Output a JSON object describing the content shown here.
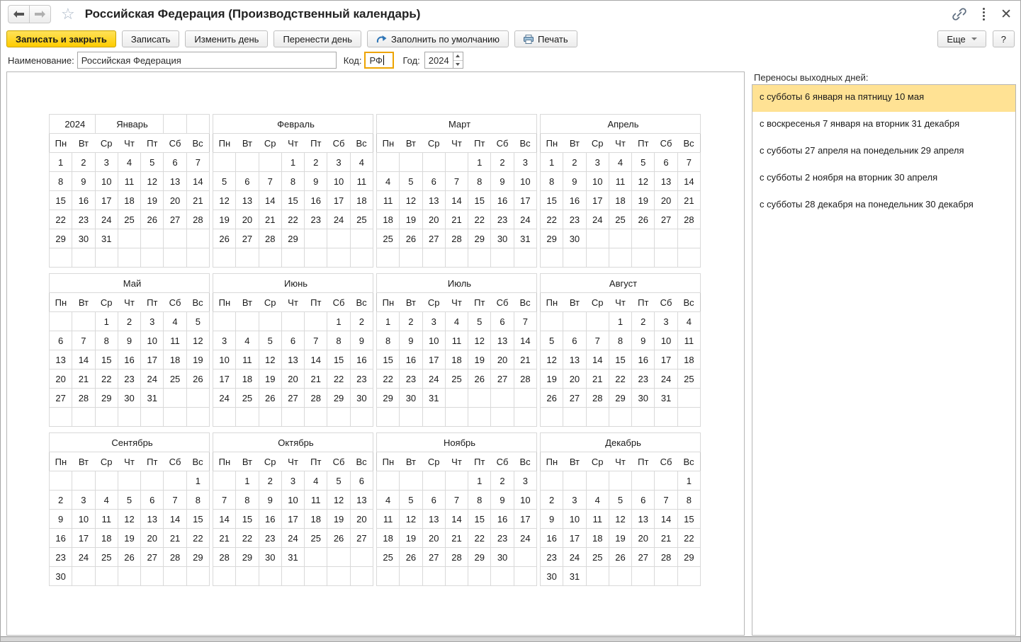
{
  "window": {
    "title": "Российская Федерация (Производственный календарь)"
  },
  "toolbar": {
    "save_close_label": "Записать и закрыть",
    "save_label": "Записать",
    "change_day_label": "Изменить день",
    "move_day_label": "Перенести день",
    "fill_default_label": "Заполнить по умолчанию",
    "print_label": "Печать",
    "more_label": "Еще",
    "help_label": "?"
  },
  "form": {
    "name_label": "Наименование:",
    "name_value": "Российская Федерация",
    "code_label": "Код:",
    "code_value": "РФ",
    "year_label": "Год:",
    "year_value": "2024"
  },
  "colors": {
    "accent_yellow_button": "#ffd633",
    "selected_row_yellow": "#ffe294",
    "weekend_header": "#e0571b",
    "day_default": "#1a1a1a",
    "day_saturday_or_moved_dayoff": "#8b1a1a",
    "day_sunday": "#f50f0f",
    "day_holiday": "#ee82ee",
    "day_preholiday_short": "#1f2090"
  },
  "calendar": {
    "year": "2024",
    "weekdays": [
      "Пн",
      "Вт",
      "Ср",
      "Чт",
      "Пт",
      "Сб",
      "Вс"
    ],
    "day_type_suffixes": {
      "m": "day_saturday_or_moved_dayoff",
      "r": "day_sunday",
      "h": "day_holiday",
      "b": "day_preholiday_short"
    },
    "months": [
      {
        "name": "Январь",
        "year": "2024",
        "weeks": [
          [
            "1h",
            "2h",
            "3h",
            "4h",
            "5h",
            "6h",
            "7h"
          ],
          [
            "8h",
            "9",
            "10",
            "11",
            "12",
            "13m",
            "14r"
          ],
          [
            "15",
            "16",
            "17",
            "18",
            "19",
            "20m",
            "21r"
          ],
          [
            "22",
            "23",
            "24",
            "25",
            "26",
            "27m",
            "28r"
          ],
          [
            "29",
            "30",
            "31",
            "",
            "",
            "",
            ""
          ],
          [
            "",
            "",
            "",
            "",
            "",
            "",
            ""
          ]
        ]
      },
      {
        "name": "Февраль",
        "weeks": [
          [
            "",
            "",
            "",
            "1",
            "2",
            "3m",
            "4r"
          ],
          [
            "5",
            "6",
            "7",
            "8",
            "9",
            "10m",
            "11r"
          ],
          [
            "12",
            "13",
            "14",
            "15",
            "16",
            "17m",
            "18r"
          ],
          [
            "19",
            "20",
            "21",
            "22b",
            "23h",
            "24m",
            "25r"
          ],
          [
            "26",
            "27",
            "28",
            "29",
            "",
            "",
            ""
          ],
          [
            "",
            "",
            "",
            "",
            "",
            "",
            ""
          ]
        ]
      },
      {
        "name": "Март",
        "weeks": [
          [
            "",
            "",
            "",
            "",
            "1",
            "2m",
            "3r"
          ],
          [
            "4",
            "5",
            "6",
            "7b",
            "8h",
            "9m",
            "10r"
          ],
          [
            "11",
            "12",
            "13",
            "14",
            "15",
            "16m",
            "17r"
          ],
          [
            "18",
            "19",
            "20",
            "21",
            "22",
            "23m",
            "24r"
          ],
          [
            "25",
            "26",
            "27",
            "28",
            "29",
            "30m",
            "31r"
          ],
          [
            "",
            "",
            "",
            "",
            "",
            "",
            ""
          ]
        ]
      },
      {
        "name": "Апрель",
        "weeks": [
          [
            "1",
            "2",
            "3",
            "4",
            "5",
            "6m",
            "7r"
          ],
          [
            "8",
            "9",
            "10",
            "11",
            "12",
            "13m",
            "14r"
          ],
          [
            "15",
            "16",
            "17",
            "18",
            "19",
            "20m",
            "21r"
          ],
          [
            "22",
            "23",
            "24",
            "25",
            "26",
            "27",
            "28r"
          ],
          [
            "29m",
            "30m",
            "",
            "",
            "",
            "",
            ""
          ],
          [
            "",
            "",
            "",
            "",
            "",
            "",
            ""
          ]
        ]
      },
      {
        "name": "Май",
        "weeks": [
          [
            "",
            "",
            "1h",
            "2",
            "3",
            "4m",
            "5r"
          ],
          [
            "6",
            "7",
            "8b",
            "9h",
            "10m",
            "11m",
            "12r"
          ],
          [
            "13",
            "14",
            "15",
            "16",
            "17",
            "18m",
            "19r"
          ],
          [
            "20",
            "21",
            "22",
            "23",
            "24",
            "25m",
            "26r"
          ],
          [
            "27",
            "28",
            "29",
            "30",
            "31",
            "",
            ""
          ],
          [
            "",
            "",
            "",
            "",
            "",
            "",
            ""
          ]
        ]
      },
      {
        "name": "Июнь",
        "weeks": [
          [
            "",
            "",
            "",
            "",
            "",
            "1m",
            "2r"
          ],
          [
            "3",
            "4",
            "5",
            "6",
            "7",
            "8m",
            "9r"
          ],
          [
            "10",
            "11b",
            "12h",
            "13",
            "14",
            "15m",
            "16r"
          ],
          [
            "17",
            "18",
            "19",
            "20",
            "21",
            "22m",
            "23r"
          ],
          [
            "24",
            "25",
            "26",
            "27",
            "28",
            "29m",
            "30r"
          ],
          [
            "",
            "",
            "",
            "",
            "",
            "",
            ""
          ]
        ]
      },
      {
        "name": "Июль",
        "weeks": [
          [
            "1",
            "2",
            "3",
            "4",
            "5",
            "6m",
            "7r"
          ],
          [
            "8",
            "9",
            "10",
            "11",
            "12",
            "13m",
            "14r"
          ],
          [
            "15",
            "16",
            "17",
            "18",
            "19",
            "20m",
            "21r"
          ],
          [
            "22",
            "23",
            "24",
            "25",
            "26",
            "27m",
            "28r"
          ],
          [
            "29",
            "30",
            "31",
            "",
            "",
            "",
            ""
          ],
          [
            "",
            "",
            "",
            "",
            "",
            "",
            ""
          ]
        ]
      },
      {
        "name": "Август",
        "weeks": [
          [
            "",
            "",
            "",
            "1",
            "2",
            "3m",
            "4r"
          ],
          [
            "5",
            "6",
            "7",
            "8",
            "9",
            "10m",
            "11r"
          ],
          [
            "12",
            "13",
            "14",
            "15",
            "16",
            "17m",
            "18r"
          ],
          [
            "19",
            "20",
            "21",
            "22",
            "23",
            "24m",
            "25r"
          ],
          [
            "26",
            "27",
            "28",
            "29",
            "30",
            "31m",
            ""
          ],
          [
            "",
            "",
            "",
            "",
            "",
            "",
            ""
          ]
        ]
      },
      {
        "name": "Сентябрь",
        "weeks": [
          [
            "",
            "",
            "",
            "",
            "",
            "",
            "1r"
          ],
          [
            "2",
            "3",
            "4",
            "5",
            "6",
            "7m",
            "8r"
          ],
          [
            "9",
            "10",
            "11",
            "12",
            "13",
            "14m",
            "15r"
          ],
          [
            "16",
            "17",
            "18",
            "19",
            "20",
            "21m",
            "22r"
          ],
          [
            "23",
            "24",
            "25",
            "26",
            "27",
            "28m",
            "29r"
          ],
          [
            "30",
            "",
            "",
            "",
            "",
            "",
            ""
          ]
        ]
      },
      {
        "name": "Октябрь",
        "weeks": [
          [
            "",
            "1",
            "2",
            "3",
            "4",
            "5m",
            "6r"
          ],
          [
            "7",
            "8",
            "9",
            "10",
            "11",
            "12m",
            "13r"
          ],
          [
            "14",
            "15",
            "16",
            "17",
            "18",
            "19m",
            "20r"
          ],
          [
            "21",
            "22",
            "23",
            "24",
            "25",
            "26m",
            "27r"
          ],
          [
            "28",
            "29",
            "30",
            "31",
            "",
            "",
            ""
          ],
          [
            "",
            "",
            "",
            "",
            "",
            "",
            ""
          ]
        ]
      },
      {
        "name": "Ноябрь",
        "weeks": [
          [
            "",
            "",
            "",
            "",
            "1",
            "2b",
            "3r"
          ],
          [
            "4h",
            "5",
            "6",
            "7",
            "8",
            "9m",
            "10r"
          ],
          [
            "11",
            "12",
            "13",
            "14",
            "15",
            "16m",
            "17r"
          ],
          [
            "18",
            "19",
            "20",
            "21",
            "22",
            "23m",
            "24r"
          ],
          [
            "25",
            "26",
            "27",
            "28",
            "29",
            "30m",
            ""
          ],
          [
            "",
            "",
            "",
            "",
            "",
            "",
            ""
          ]
        ]
      },
      {
        "name": "Декабрь",
        "weeks": [
          [
            "",
            "",
            "",
            "",
            "",
            "",
            "1r"
          ],
          [
            "2",
            "3",
            "4",
            "5",
            "6",
            "7m",
            "8r"
          ],
          [
            "9",
            "10",
            "11",
            "12",
            "13",
            "14m",
            "15r"
          ],
          [
            "16",
            "17",
            "18",
            "19",
            "20",
            "21m",
            "22r"
          ],
          [
            "23",
            "24",
            "25",
            "26",
            "27",
            "28",
            "29r"
          ],
          [
            "30m",
            "31m",
            "",
            "",
            "",
            "",
            ""
          ]
        ]
      }
    ]
  },
  "transfers": {
    "label": "Переносы выходных дней:",
    "selected_index": 0,
    "items": [
      "с субботы 6 января на пятницу 10 мая",
      "с воскресенья 7 января на вторник 31 декабря",
      "с субботы 27 апреля на понедельник 29 апреля",
      "с субботы 2 ноября на вторник 30 апреля",
      "с субботы 28 декабря на понедельник 30 декабря"
    ]
  }
}
